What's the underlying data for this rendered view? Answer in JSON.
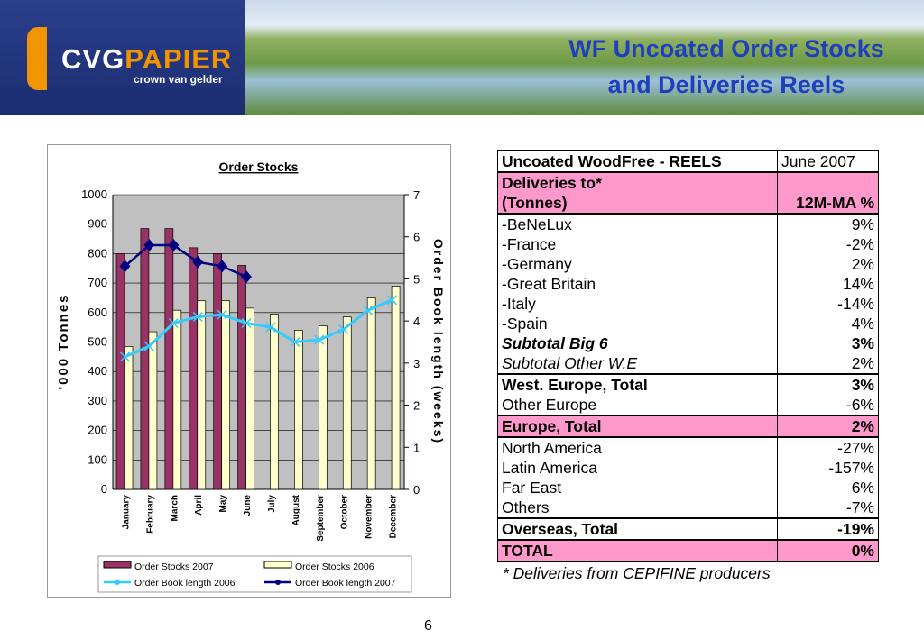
{
  "header": {
    "logo_name_1": "CVG",
    "logo_name_2": "PAPIER",
    "logo_sub": "crown van gelder",
    "title_1": "WF Uncoated Order Stocks",
    "title_2": "and Deliveries Reels"
  },
  "chart_data": {
    "type": "bar",
    "title": "Order Stocks",
    "ylabel": "'000 Tonnes",
    "y2label": "Order Book length (weeks)",
    "ylim": [
      0,
      1000
    ],
    "y2lim": [
      0,
      7
    ],
    "yticks": [
      0,
      100,
      200,
      300,
      400,
      500,
      600,
      700,
      800,
      900,
      1000
    ],
    "y2ticks": [
      0,
      1,
      2,
      3,
      4,
      5,
      6,
      7
    ],
    "categories": [
      "January",
      "February",
      "March",
      "April",
      "May",
      "June",
      "July",
      "August",
      "September",
      "October",
      "November",
      "December"
    ],
    "series": [
      {
        "name": "Order Stocks 2007",
        "kind": "bar",
        "axis": "left",
        "color": "#993366",
        "values": [
          800,
          885,
          885,
          820,
          800,
          760,
          null,
          null,
          null,
          null,
          null,
          null
        ]
      },
      {
        "name": "Order Stocks 2006",
        "kind": "bar",
        "axis": "left",
        "color": "#ffffcc",
        "values": [
          485,
          535,
          608,
          640,
          640,
          615,
          595,
          540,
          555,
          585,
          650,
          690
        ]
      },
      {
        "name": "Order Book length 2006",
        "kind": "line",
        "axis": "right",
        "color": "#33ccff",
        "marker": "x",
        "values": [
          3.15,
          3.4,
          3.95,
          4.1,
          4.15,
          3.95,
          3.85,
          3.5,
          3.55,
          3.8,
          4.25,
          4.5
        ]
      },
      {
        "name": "Order Book length 2007",
        "kind": "line",
        "axis": "right",
        "color": "#000080",
        "marker": "diamond",
        "values": [
          5.3,
          5.8,
          5.8,
          5.4,
          5.3,
          5.05,
          null,
          null,
          null,
          null,
          null,
          null
        ]
      }
    ],
    "grid": true,
    "legend": "bottom"
  },
  "table": {
    "rows": [
      {
        "label": "Uncoated WoodFree - REELS",
        "value": "June 2007",
        "cls": "b"
      },
      {
        "label": "Deliveries to*",
        "value": "",
        "cls": "pk"
      },
      {
        "label": "(Tonnes)",
        "value": "12M-MA %",
        "cls": "pk"
      },
      {
        "label": "-BeNeLux",
        "value": "9%"
      },
      {
        "label": "-France",
        "value": "-2%"
      },
      {
        "label": "-Germany",
        "value": "2%"
      },
      {
        "label": "-Great Britain",
        "value": "14%"
      },
      {
        "label": "-Italy",
        "value": "-14%"
      },
      {
        "label": "-Spain",
        "value": "4%"
      },
      {
        "label": "Subtotal Big 6",
        "value": "3%"
      },
      {
        "label": "Subtotal Other W.E",
        "value": "2%"
      },
      {
        "label": "West. Europe, Total",
        "value": "3%"
      },
      {
        "label": "Other Europe",
        "value": "-6%"
      },
      {
        "label": "Europe, Total",
        "value": "2%"
      },
      {
        "label": "North America",
        "value": "-27%"
      },
      {
        "label": "Latin America",
        "value": "-157%"
      },
      {
        "label": "Far East",
        "value": "6%"
      },
      {
        "label": "Others",
        "value": "-7%"
      },
      {
        "label": "Overseas, Total",
        "value": "-19%"
      },
      {
        "label": "TOTAL",
        "value": "0%"
      }
    ]
  },
  "footnote": "* Deliveries from CEPIFINE producers",
  "page_number": "6"
}
